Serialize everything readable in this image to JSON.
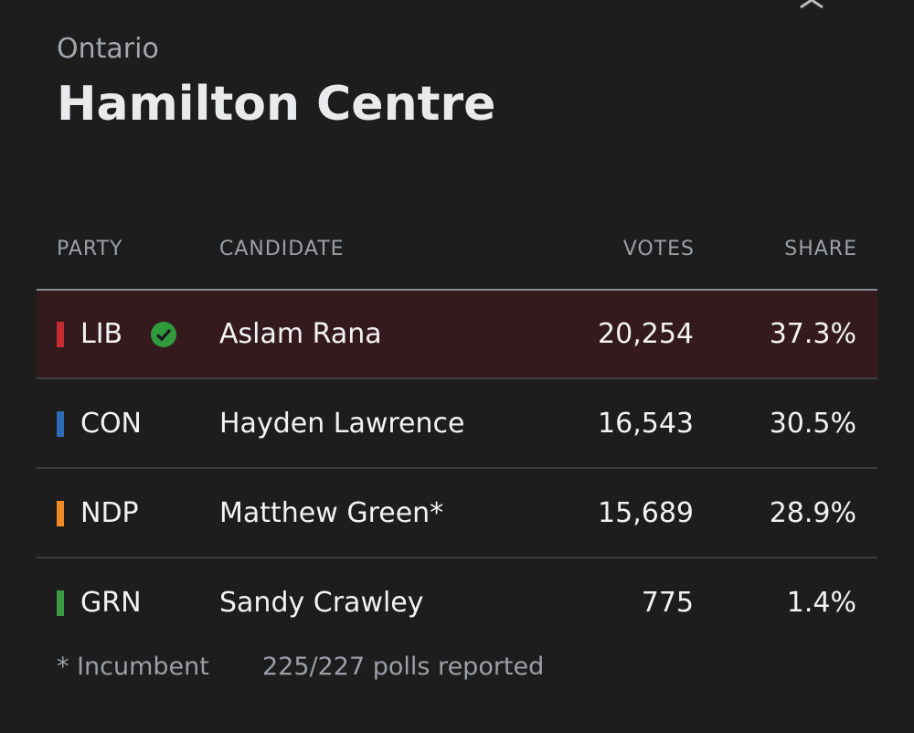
{
  "header": {
    "subtitle": "Ontario",
    "title": "Hamilton Centre"
  },
  "table": {
    "columns": [
      "PARTY",
      "CANDIDATE",
      "VOTES",
      "SHARE"
    ],
    "rows": [
      {
        "party": "LIB",
        "color": "#c62a33",
        "winner": true,
        "candidate": "Aslam Rana",
        "votes": "20,254",
        "share": "37.3%"
      },
      {
        "party": "CON",
        "color": "#2e6bb5",
        "winner": false,
        "candidate": "Hayden Lawrence",
        "votes": "16,543",
        "share": "30.5%"
      },
      {
        "party": "NDP",
        "color": "#f08a24",
        "winner": false,
        "candidate": "Matthew Green*",
        "votes": "15,689",
        "share": "28.9%"
      },
      {
        "party": "GRN",
        "color": "#3e9a45",
        "winner": false,
        "candidate": "Sandy Crawley",
        "votes": "775",
        "share": "1.4%"
      }
    ]
  },
  "footer": {
    "note": "* Incumbent",
    "status": "225/227 polls reported"
  }
}
